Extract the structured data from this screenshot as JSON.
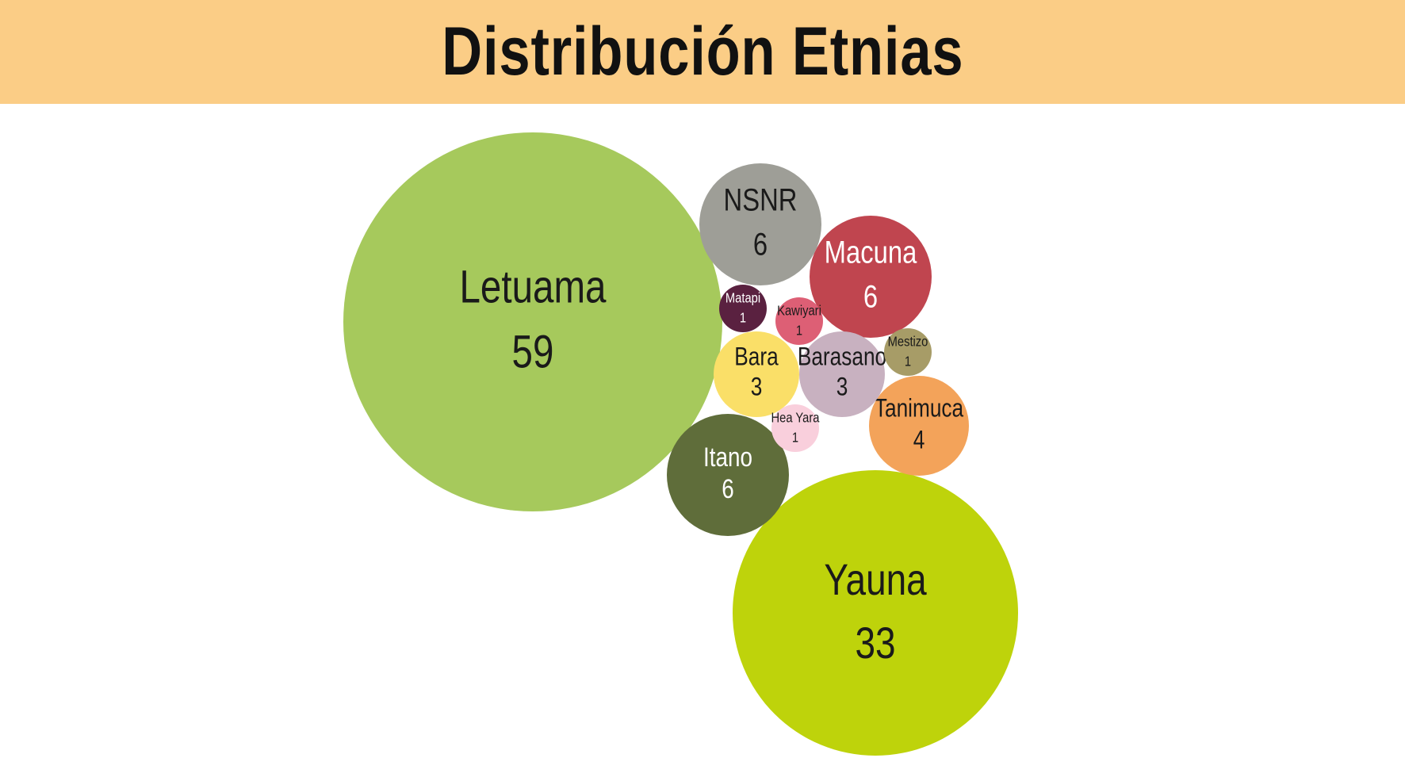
{
  "header": {
    "title": "Distribución Etnias"
  },
  "chart_data": {
    "type": "bubble",
    "title": "Distribución Etnias",
    "series": [
      {
        "name": "Letuama",
        "value": 59,
        "color": "#a6c95c",
        "text_color": "#1a1a1a"
      },
      {
        "name": "Yauna",
        "value": 33,
        "color": "#bed30b",
        "text_color": "#1a1a1a"
      },
      {
        "name": "NSNR",
        "value": 6,
        "color": "#9e9e97",
        "text_color": "#1a1a1a"
      },
      {
        "name": "Macuna",
        "value": 6,
        "color": "#c0454f",
        "text_color": "#ffffff"
      },
      {
        "name": "Itano",
        "value": 6,
        "color": "#5f6d3a",
        "text_color": "#ffffff"
      },
      {
        "name": "Tanimuca",
        "value": 4,
        "color": "#f3a35a",
        "text_color": "#1a1a1a"
      },
      {
        "name": "Bara",
        "value": 3,
        "color": "#fadf68",
        "text_color": "#1a1a1a"
      },
      {
        "name": "Barasano",
        "value": 3,
        "color": "#c8b1c0",
        "text_color": "#1a1a1a"
      },
      {
        "name": "Matapi",
        "value": 1,
        "color": "#5a2140",
        "text_color": "#ffffff"
      },
      {
        "name": "Kawiyari",
        "value": 1,
        "color": "#dd5f75",
        "text_color": "#1a1a1a"
      },
      {
        "name": "Mestizo",
        "value": 1,
        "color": "#a79c67",
        "text_color": "#1a1a1a"
      },
      {
        "name": "Hea Yara",
        "value": 1,
        "color": "#f9cfdc",
        "text_color": "#1a1a1a"
      }
    ]
  }
}
